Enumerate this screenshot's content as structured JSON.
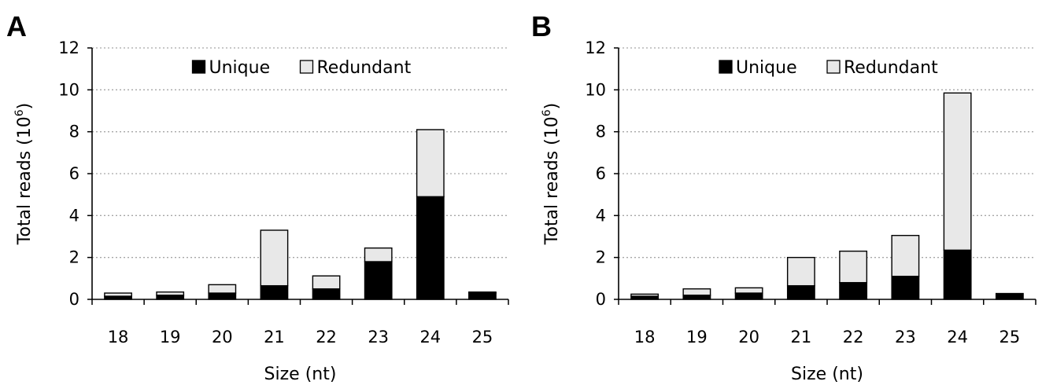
{
  "figure": {
    "colors": {
      "unique": "#000000",
      "redundant": "#e8e8e8",
      "grid": "#a6a6a6",
      "axis": "#000000"
    }
  },
  "chart_data": [
    {
      "panel_label": "A",
      "type": "bar",
      "stacked": true,
      "categories": [
        "18",
        "19",
        "20",
        "21",
        "22",
        "23",
        "24",
        "25"
      ],
      "series": [
        {
          "name": "Unique",
          "values": [
            0.15,
            0.2,
            0.3,
            0.65,
            0.5,
            1.8,
            4.9,
            0.3
          ]
        },
        {
          "name": "Redundant",
          "values": [
            0.15,
            0.15,
            0.4,
            2.65,
            0.62,
            0.65,
            3.2,
            0.05
          ]
        }
      ],
      "xlabel": "Size (nt)",
      "ylabel": "Total reads (10",
      "ylabel_sup": "6",
      "ylabel_end": ")",
      "ylim": [
        0,
        12
      ],
      "yticks": [
        "0",
        "2",
        "4",
        "6",
        "8",
        "10",
        "12"
      ],
      "grid": true,
      "legend_position": "top-center"
    },
    {
      "panel_label": "B",
      "type": "bar",
      "stacked": true,
      "categories": [
        "18",
        "19",
        "20",
        "21",
        "22",
        "23",
        "24",
        "25"
      ],
      "series": [
        {
          "name": "Unique",
          "values": [
            0.15,
            0.2,
            0.3,
            0.65,
            0.8,
            1.1,
            2.35,
            0.28
          ]
        },
        {
          "name": "Redundant",
          "values": [
            0.1,
            0.3,
            0.25,
            1.35,
            1.5,
            1.95,
            7.5,
            0.0
          ]
        }
      ],
      "xlabel": "Size (nt)",
      "ylabel": "Total reads (10",
      "ylabel_sup": "6",
      "ylabel_end": ")",
      "ylim": [
        0,
        12
      ],
      "yticks": [
        "0",
        "2",
        "4",
        "6",
        "8",
        "10",
        "12"
      ],
      "grid": true,
      "legend_position": "top-center"
    }
  ]
}
